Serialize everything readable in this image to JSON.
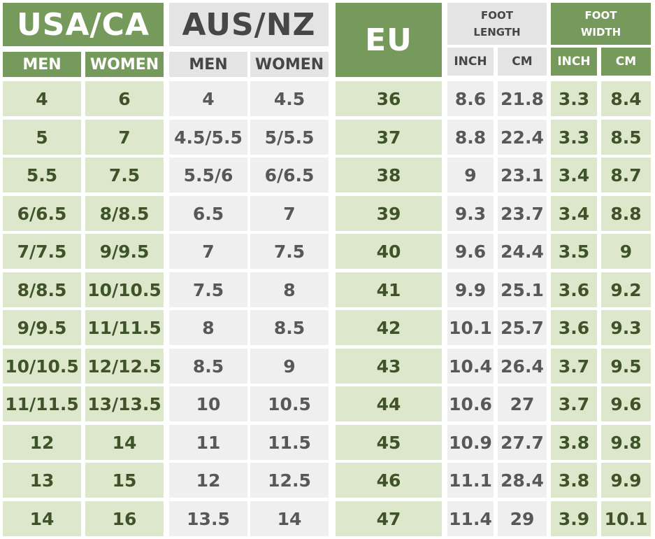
{
  "headers": {
    "usa_ca": "USA/CA",
    "aus_nz": "AUS/NZ",
    "eu": "EU",
    "foot_length": [
      "FOOT",
      "LENGTH"
    ],
    "foot_width": [
      "FOOT",
      "WIDTH"
    ],
    "men": "MEN",
    "women": "WOMEN",
    "inch": "INCH",
    "cm": "CM"
  },
  "columns": [
    "USA/CA MEN",
    "USA/CA WOMEN",
    "AUS/NZ MEN",
    "AUS/NZ WOMEN",
    "EU",
    "FOOT LENGTH INCH",
    "FOOT LENGTH CM",
    "FOOT WIDTH INCH",
    "FOOT WIDTH CM"
  ],
  "rows": [
    [
      "4",
      "6",
      "4",
      "4.5",
      "36",
      "8.6",
      "21.8",
      "3.3",
      "8.4"
    ],
    [
      "5",
      "7",
      "4.5/5.5",
      "5/5.5",
      "37",
      "8.8",
      "22.4",
      "3.3",
      "8.5"
    ],
    [
      "5.5",
      "7.5",
      "5.5/6",
      "6/6.5",
      "38",
      "9",
      "23.1",
      "3.4",
      "8.7"
    ],
    [
      "6/6.5",
      "8/8.5",
      "6.5",
      "7",
      "39",
      "9.3",
      "23.7",
      "3.4",
      "8.8"
    ],
    [
      "7/7.5",
      "9/9.5",
      "7",
      "7.5",
      "40",
      "9.6",
      "24.4",
      "3.5",
      "9"
    ],
    [
      "8/8.5",
      "10/10.5",
      "7.5",
      "8",
      "41",
      "9.9",
      "25.1",
      "3.6",
      "9.2"
    ],
    [
      "9/9.5",
      "11/11.5",
      "8",
      "8.5",
      "42",
      "10.1",
      "25.7",
      "3.6",
      "9.3"
    ],
    [
      "10/10.5",
      "12/12.5",
      "8.5",
      "9",
      "43",
      "10.4",
      "26.4",
      "3.7",
      "9.5"
    ],
    [
      "11/11.5",
      "13/13.5",
      "10",
      "10.5",
      "44",
      "10.6",
      "27",
      "3.7",
      "9.6"
    ],
    [
      "12",
      "14",
      "11",
      "11.5",
      "45",
      "10.9",
      "27.7",
      "3.8",
      "9.8"
    ],
    [
      "13",
      "15",
      "12",
      "12.5",
      "46",
      "11.1",
      "28.4",
      "3.8",
      "9.9"
    ],
    [
      "14",
      "16",
      "13.5",
      "14",
      "47",
      "11.4",
      "29",
      "3.9",
      "10.1"
    ]
  ],
  "colors": {
    "header_green": "#769a5c",
    "header_gray": "#e4e4e4",
    "cell_green": "#dce7cc",
    "cell_gray": "#efefef"
  }
}
